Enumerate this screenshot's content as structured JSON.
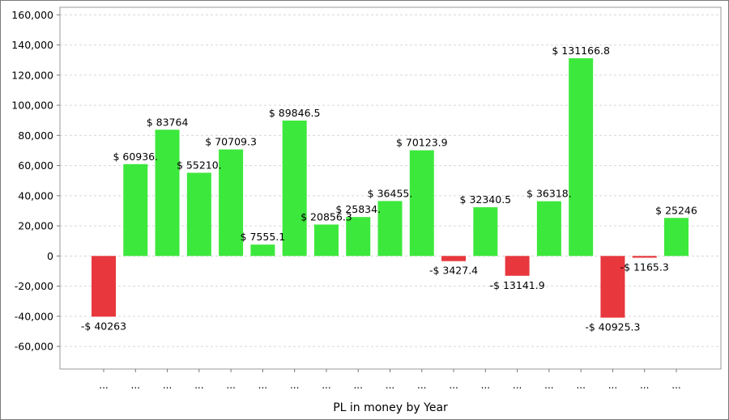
{
  "chart_data": {
    "type": "bar",
    "xlabel": "PL in money by Year",
    "ylabel": "",
    "ylim": [
      -75000,
      165000
    ],
    "yticks": [
      160000,
      140000,
      120000,
      100000,
      80000,
      60000,
      40000,
      20000,
      0,
      -20000,
      -40000,
      -60000
    ],
    "ytick_labels": [
      "160,000",
      "140,000",
      "120,000",
      "100,000",
      "80,000",
      "60,000",
      "40,000",
      "20,000",
      "0",
      "-20,000",
      "-40,000",
      "-60,000"
    ],
    "grid": true,
    "categories": [
      "...",
      "...",
      "...",
      "...",
      "...",
      "...",
      "...",
      "...",
      "...",
      "...",
      "...",
      "...",
      "...",
      "...",
      "...",
      "...",
      "...",
      "...",
      "..."
    ],
    "values": [
      -40263,
      60936,
      83764,
      55210,
      70709.3,
      7555.1,
      89846.5,
      20856.3,
      25834,
      36455,
      70123.9,
      -3427.4,
      32340.5,
      -13141.9,
      36318,
      131166.8,
      -40925.3,
      -1165.3,
      25246
    ],
    "data_labels": [
      "-$ 40263",
      "$ 60936.",
      "$ 83764",
      "$ 55210.",
      "$ 70709.3",
      "$ 7555.1",
      "$ 89846.5",
      "$ 20856.3",
      "$ 25834.",
      "$ 36455.",
      "$ 70123.9",
      "-$ 3427.4",
      "$ 32340.5",
      "-$ 13141.9",
      "$ 36318.",
      "$ 131166.8",
      "-$ 40925.3",
      "-$ 1165.3",
      "$ 25246"
    ],
    "colors": {
      "positive": "#3de83d",
      "negative": "#e8373d"
    }
  }
}
